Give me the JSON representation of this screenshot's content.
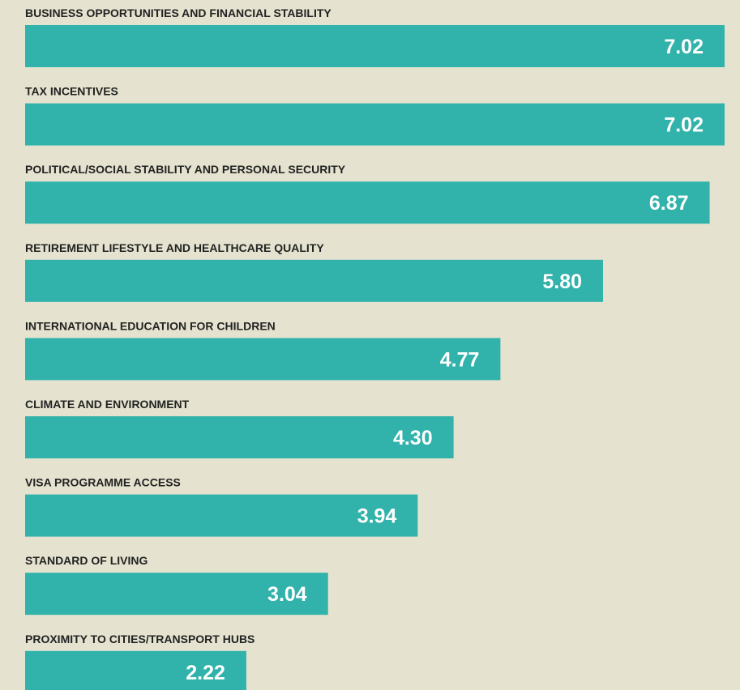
{
  "chart_data": {
    "type": "bar",
    "orientation": "horizontal",
    "color": "#31b2ab",
    "categories": [
      "BUSINESS OPPORTUNITIES AND FINANCIAL STABILITY",
      "TAX INCENTIVES",
      "POLITICAL/SOCIAL STABILITY AND PERSONAL SECURITY",
      "RETIREMENT LIFESTYLE AND HEALTHCARE QUALITY",
      "INTERNATIONAL EDUCATION FOR CHILDREN",
      "CLIMATE AND ENVIRONMENT",
      "VISA PROGRAMME ACCESS",
      "STANDARD OF LIVING",
      "PROXIMITY TO CITIES/TRANSPORT HUBS"
    ],
    "values": [
      7.02,
      7.02,
      6.87,
      5.8,
      4.77,
      4.3,
      3.94,
      3.04,
      2.22
    ],
    "value_labels": [
      "7.02",
      "7.02",
      "6.87",
      "5.80",
      "4.77",
      "4.30",
      "3.94",
      "3.04",
      "2.22"
    ]
  }
}
